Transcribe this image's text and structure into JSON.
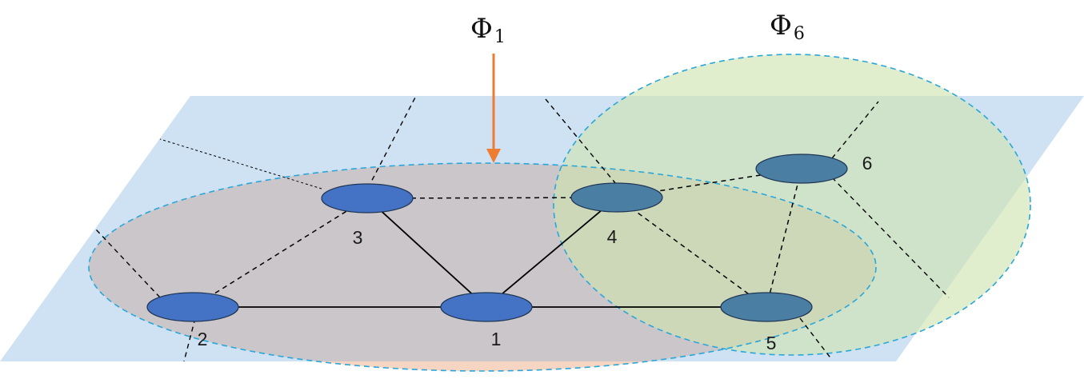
{
  "colors": {
    "plane": "#cfe2f3",
    "region_phi1": "#c9c4c6",
    "region_phi1_overflow": "#f7d5c3",
    "region_phi6": "#cfe3b0",
    "region_border": "#2aa6d9",
    "node_blue": "#4472c4",
    "node_teal": "#4a7ea3",
    "arrow": "#ed7d31",
    "edge": "#000000"
  },
  "regions": {
    "phi1": {
      "symbol": "Φ",
      "subscript": "1"
    },
    "phi6": {
      "symbol": "Φ",
      "subscript": "6"
    }
  },
  "nodes": [
    {
      "id": "1",
      "label": "1"
    },
    {
      "id": "2",
      "label": "2"
    },
    {
      "id": "3",
      "label": "3"
    },
    {
      "id": "4",
      "label": "4"
    },
    {
      "id": "5",
      "label": "5"
    },
    {
      "id": "6",
      "label": "6"
    }
  ],
  "edges": [
    {
      "from": "2",
      "to": "1",
      "style": "solid"
    },
    {
      "from": "1",
      "to": "5",
      "style": "solid"
    },
    {
      "from": "3",
      "to": "1",
      "style": "solid"
    },
    {
      "from": "1",
      "to": "4",
      "style": "solid"
    },
    {
      "from": "2",
      "to": "3",
      "style": "dashed"
    },
    {
      "from": "3",
      "to": "4",
      "style": "dashed"
    },
    {
      "from": "4",
      "to": "6",
      "style": "dashed"
    },
    {
      "from": "4",
      "to": "5",
      "style": "dashed"
    },
    {
      "from": "6",
      "to": "5",
      "style": "dashed"
    }
  ]
}
